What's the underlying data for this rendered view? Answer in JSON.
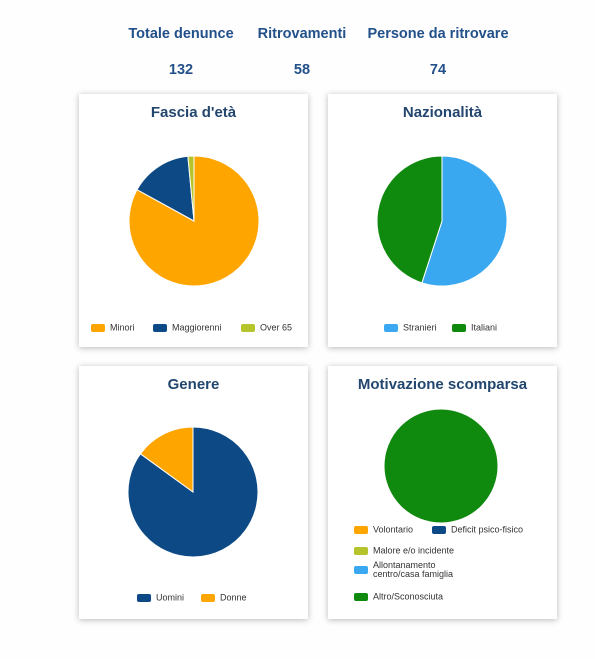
{
  "stats": [
    {
      "label": "Totale denunce",
      "value": "132"
    },
    {
      "label": "Ritrovamenti",
      "value": "58"
    },
    {
      "label": "Persone da ritrovare",
      "value": "74"
    }
  ],
  "colors": {
    "orange": "#FFA500",
    "navy": "#0D4A85",
    "lime": "#B5C42A",
    "sky": "#3AA8F0",
    "green": "#0F8A0F"
  },
  "chart_data": [
    {
      "type": "pie",
      "title": "Fascia d'età",
      "categories": [
        "Minori",
        "Maggiorenni",
        "Over 65"
      ],
      "values": [
        83,
        15.5,
        1.5
      ],
      "colors": [
        "#FFA500",
        "#0D4A85",
        "#B5C42A"
      ],
      "legend_position": "bottom"
    },
    {
      "type": "pie",
      "title": "Nazionalità",
      "categories": [
        "Stranieri",
        "Italiani"
      ],
      "values": [
        55,
        45
      ],
      "colors": [
        "#3AA8F0",
        "#0F8A0F"
      ],
      "legend_position": "bottom"
    },
    {
      "type": "pie",
      "title": "Genere",
      "categories": [
        "Uomini",
        "Donne"
      ],
      "values": [
        85,
        15
      ],
      "colors": [
        "#0D4A85",
        "#FFA500"
      ],
      "legend_position": "bottom"
    },
    {
      "type": "pie",
      "title": "Motivazione scomparsa",
      "categories": [
        "Volontario",
        "Deficit psico-fisico",
        "Malore e/o incidente",
        "Allontanamento centro/casa famiglia",
        "Altro/Sconosciuta"
      ],
      "legend_labels": [
        "Volontario",
        "Deficit psico-fisico",
        "Malore e/o incidente",
        "Allontanamento\ncentro/casa famiglia",
        "Altro/Sconosciuta"
      ],
      "values": [
        0,
        0,
        0,
        0,
        100
      ],
      "colors": [
        "#FFA500",
        "#0D4A85",
        "#B5C42A",
        "#3AA8F0",
        "#0F8A0F"
      ],
      "legend_position": "bottom"
    }
  ]
}
